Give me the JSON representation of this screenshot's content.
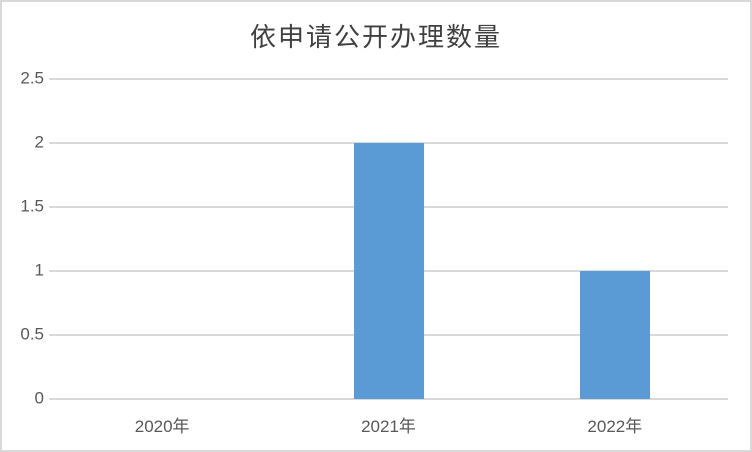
{
  "chart_data": {
    "type": "bar",
    "title": "依申请公开办理数量",
    "categories": [
      "2020年",
      "2021年",
      "2022年"
    ],
    "values": [
      0,
      2,
      1
    ],
    "ylim": [
      0,
      2.5
    ],
    "ytick_step": 0.5,
    "yticks_bottom_to_top": [
      "0",
      "0.5",
      "1",
      "1.5",
      "2",
      "2.5"
    ],
    "xlabel": "",
    "ylabel": "",
    "grid": true,
    "legend": "none",
    "colors": {
      "bar": "#5B9BD5",
      "gridline": "#D9D9D9",
      "tick_label": "#595959",
      "title": "#404040",
      "border": "#D9D9D9",
      "background": "#FFFFFF"
    }
  }
}
